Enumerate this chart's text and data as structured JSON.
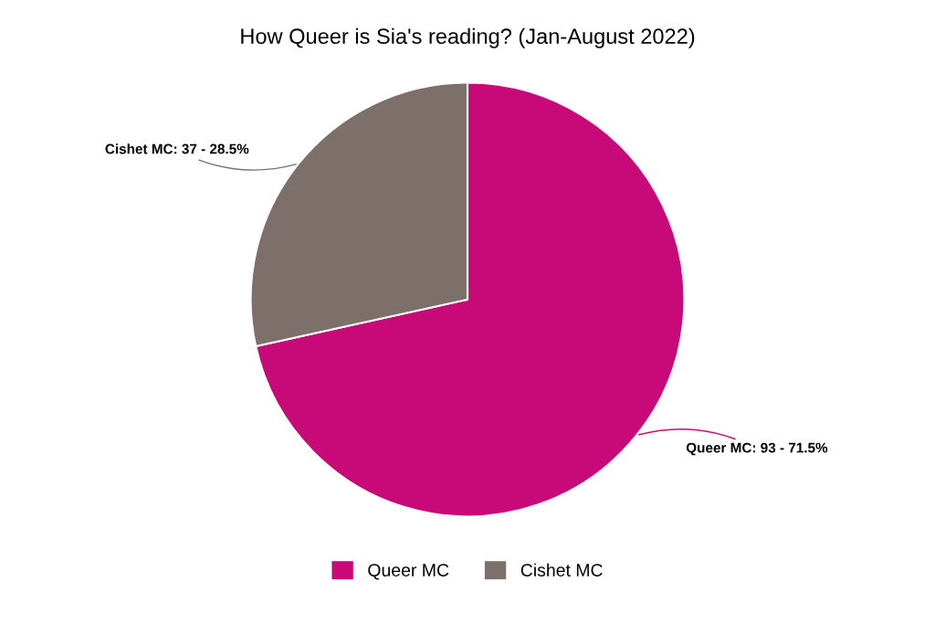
{
  "chart_data": {
    "type": "pie",
    "title": "How Queer is Sia's reading? (Jan-August 2022)",
    "categories": [
      "Queer MC",
      "Cishet MC"
    ],
    "values": [
      93,
      37
    ],
    "colors": [
      "#c80a78",
      "#7d706b"
    ],
    "value_labels": [
      "Queer MC: 93 - 71.5%",
      "Cishet MC: 37 - 28.5%"
    ],
    "legend": "bottom"
  }
}
